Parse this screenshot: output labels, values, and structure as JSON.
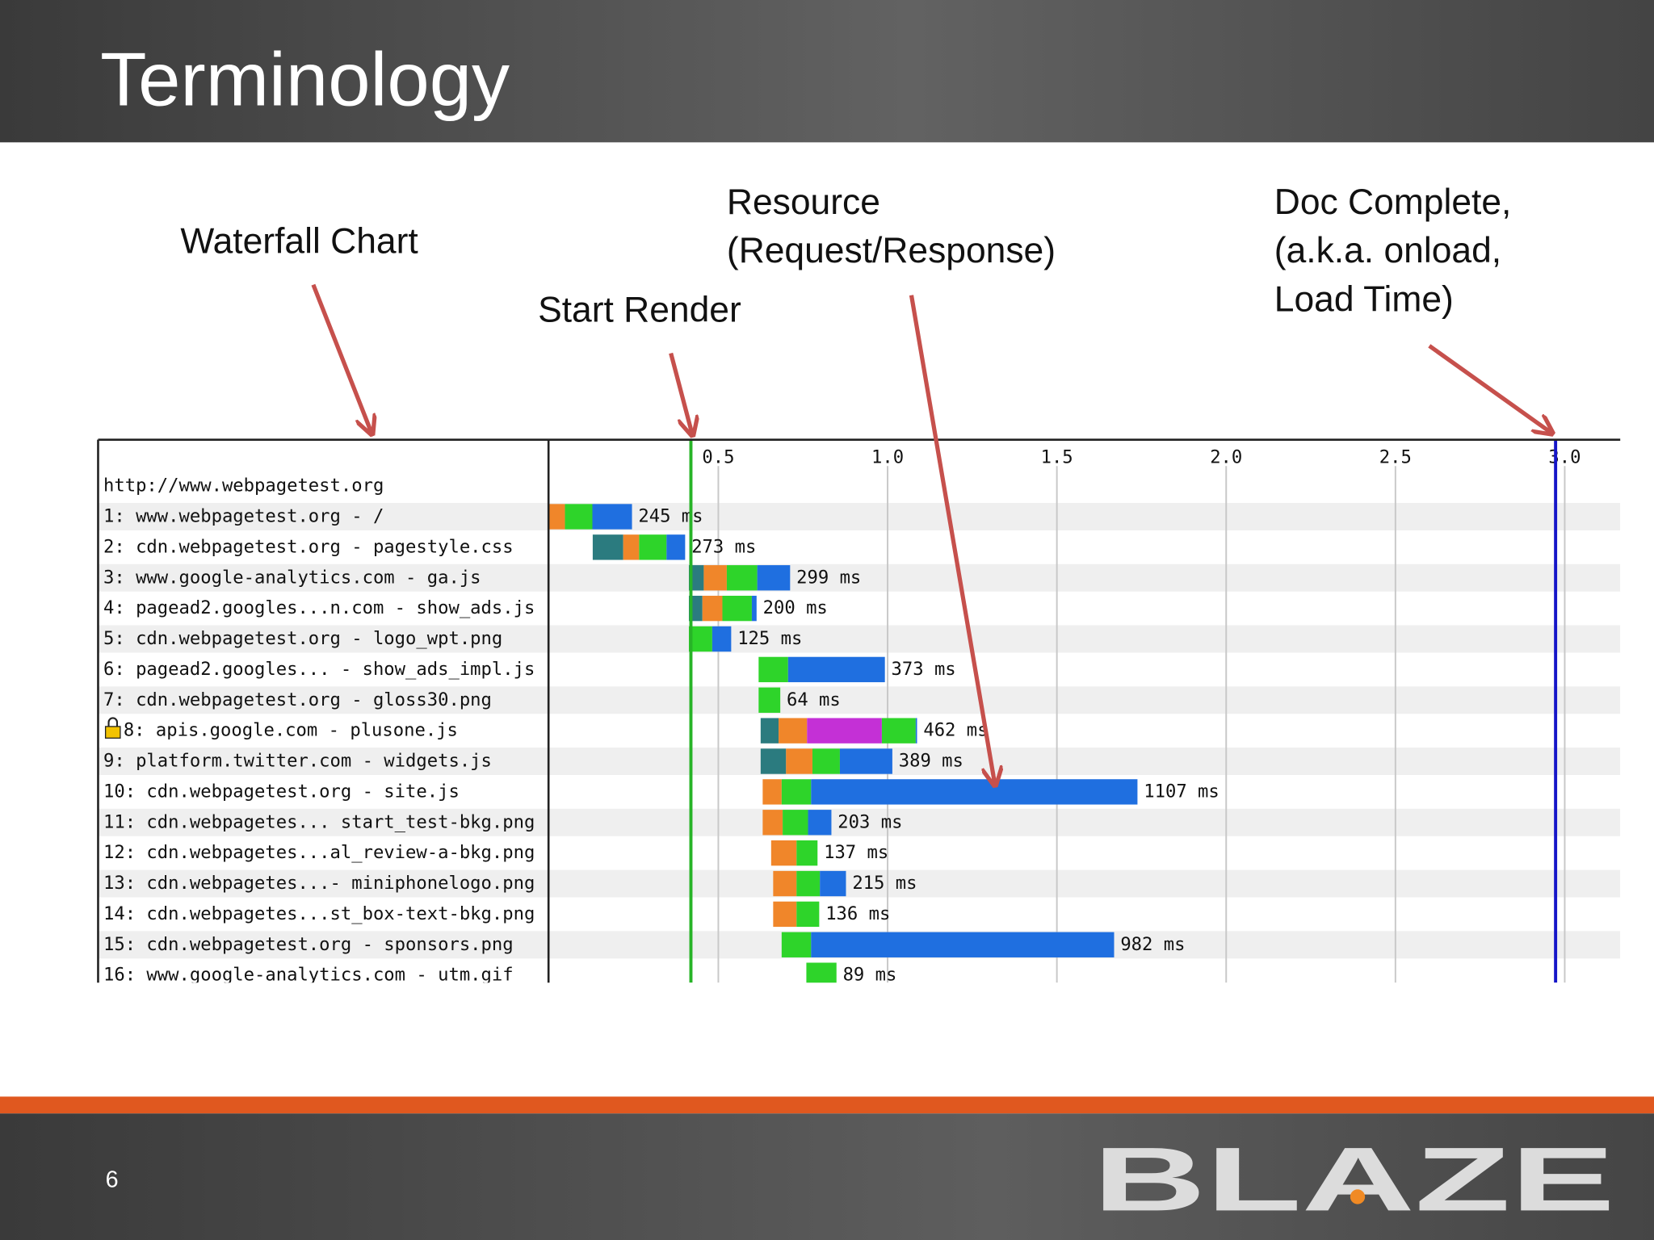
{
  "slide": {
    "title": "Terminology",
    "page_number": "6",
    "logo": "BLAZE"
  },
  "annotations": [
    {
      "lines": [
        "Waterfall Chart"
      ]
    },
    {
      "lines": [
        "Start Render"
      ]
    },
    {
      "lines": [
        "Resource",
        "(Request/Response)"
      ]
    },
    {
      "lines": [
        "Doc Complete,",
        "(a.k.a. onload,",
        "Load Time)"
      ]
    }
  ],
  "chart_data": {
    "type": "waterfall",
    "header": "http://www.webpagetest.org",
    "xlim": [
      0,
      3.164
    ],
    "xticks": [
      0.5,
      {
        "value": 1,
        "label": "1.0"
      },
      1.5,
      {
        "value": 2,
        "label": "2.0"
      },
      2.5,
      {
        "value": 3,
        "label": "3.0"
      }
    ],
    "grid": true,
    "markers": [
      {
        "value": 0.419,
        "color": "#27b427"
      },
      {
        "value": 2.973,
        "color": "#1515c8"
      }
    ],
    "rows": [
      {
        "label": "1: www.webpagetest.org - /",
        "start": 0,
        "duration": 0.245,
        "duration_label": "245 ms",
        "segments": [
          {
            "color": "#f0862a",
            "value": 0.047
          },
          {
            "color": "#2ed42a",
            "value": 0.081
          },
          {
            "color": "#1f6fe0",
            "value": 0.117
          }
        ]
      },
      {
        "label": "2: cdn.webpagetest.org - pagestyle.css",
        "start": 0.129,
        "duration": 0.273,
        "duration_label": "273 ms",
        "segments": [
          {
            "color": "#2b7b7f",
            "value": 0.09
          },
          {
            "color": "#f0862a",
            "value": 0.047
          },
          {
            "color": "#2ed42a",
            "value": 0.081
          },
          {
            "color": "#1f6fe0",
            "value": 0.055
          }
        ]
      },
      {
        "label": "3: www.google-analytics.com - ga.js",
        "start": 0.413,
        "duration": 0.299,
        "duration_label": "299 ms",
        "segments": [
          {
            "color": "#2b7b7f",
            "value": 0.044
          },
          {
            "color": "#f0862a",
            "value": 0.068
          },
          {
            "color": "#2ed42a",
            "value": 0.09
          },
          {
            "color": "#1f6fe0",
            "value": 0.097
          }
        ]
      },
      {
        "label": "4: pagead2.googles...n.com - show_ads.js",
        "start": 0.413,
        "duration": 0.2,
        "duration_label": "200 ms",
        "segments": [
          {
            "color": "#2b7b7f",
            "value": 0.04
          },
          {
            "color": "#f0862a",
            "value": 0.059
          },
          {
            "color": "#2ed42a",
            "value": 0.087
          },
          {
            "color": "#1f6fe0",
            "value": 0.014
          }
        ]
      },
      {
        "label": "5: cdn.webpagetest.org - logo_wpt.png",
        "start": 0.413,
        "duration": 0.125,
        "duration_label": "125 ms",
        "segments": [
          {
            "color": "#2ed42a",
            "value": 0.069
          },
          {
            "color": "#1f6fe0",
            "value": 0.056
          }
        ]
      },
      {
        "label": "6: pagead2.googles... - show_ads_impl.js",
        "start": 0.619,
        "duration": 0.373,
        "duration_label": "373 ms",
        "segments": [
          {
            "color": "#2ed42a",
            "value": 0.087
          },
          {
            "color": "#1f6fe0",
            "value": 0.286
          }
        ]
      },
      {
        "label": "7: cdn.webpagetest.org - gloss30.png",
        "start": 0.619,
        "duration": 0.064,
        "duration_label": "64 ms",
        "segments": [
          {
            "color": "#2ed42a",
            "value": 0.064
          }
        ]
      },
      {
        "label": "8: apis.google.com - plusone.js",
        "start": 0.625,
        "duration": 0.462,
        "duration_label": "462 ms",
        "segments": [
          {
            "color": "#2b7b7f",
            "value": 0.053
          },
          {
            "color": "#f0862a",
            "value": 0.084
          },
          {
            "color": "#c430d6",
            "value": 0.221
          },
          {
            "color": "#2ed42a",
            "value": 0.1
          },
          {
            "color": "#1f6fe0",
            "value": 0.004
          }
        ]
      },
      {
        "label": "9: platform.twitter.com - widgets.js",
        "start": 0.625,
        "duration": 0.389,
        "duration_label": "389 ms",
        "segments": [
          {
            "color": "#2b7b7f",
            "value": 0.075
          },
          {
            "color": "#f0862a",
            "value": 0.078
          },
          {
            "color": "#2ed42a",
            "value": 0.081
          },
          {
            "color": "#1f6fe0",
            "value": 0.155
          }
        ]
      },
      {
        "label": "10: cdn.webpagetest.org - site.js",
        "start": 0.631,
        "duration": 1.107,
        "duration_label": "1107 ms",
        "segments": [
          {
            "color": "#f0862a",
            "value": 0.056
          },
          {
            "color": "#2ed42a",
            "value": 0.087
          },
          {
            "color": "#1f6fe0",
            "value": 0.964
          }
        ]
      },
      {
        "label": "11: cdn.webpagetes... start_test-bkg.png",
        "start": 0.631,
        "duration": 0.203,
        "duration_label": "203 ms",
        "segments": [
          {
            "color": "#f0862a",
            "value": 0.059
          },
          {
            "color": "#2ed42a",
            "value": 0.075
          },
          {
            "color": "#1f6fe0",
            "value": 0.069
          }
        ]
      },
      {
        "label": "12: cdn.webpagetes...al_review-a-bkg.png",
        "start": 0.656,
        "duration": 0.137,
        "duration_label": "137 ms",
        "segments": [
          {
            "color": "#f0862a",
            "value": 0.075
          },
          {
            "color": "#2ed42a",
            "value": 0.062
          }
        ]
      },
      {
        "label": "13: cdn.webpagetes...- miniphonelogo.png",
        "start": 0.662,
        "duration": 0.215,
        "duration_label": "215 ms",
        "segments": [
          {
            "color": "#f0862a",
            "value": 0.069
          },
          {
            "color": "#2ed42a",
            "value": 0.069
          },
          {
            "color": "#1f6fe0",
            "value": 0.077
          }
        ]
      },
      {
        "label": "14: cdn.webpagetes...st_box-text-bkg.png",
        "start": 0.662,
        "duration": 0.136,
        "duration_label": "136 ms",
        "segments": [
          {
            "color": "#f0862a",
            "value": 0.069
          },
          {
            "color": "#2ed42a",
            "value": 0.067
          }
        ]
      },
      {
        "label": "15: cdn.webpagetest.org - sponsors.png",
        "start": 0.687,
        "duration": 0.982,
        "duration_label": "982 ms",
        "segments": [
          {
            "color": "#2ed42a",
            "value": 0.087
          },
          {
            "color": "#1f6fe0",
            "value": 0.895
          }
        ]
      },
      {
        "label": "16: www.google-analytics.com - utm.gif",
        "start": 0.76,
        "duration": 0.089,
        "duration_label": "89 ms",
        "segments": [
          {
            "color": "#2ed42a",
            "value": 0.089
          }
        ]
      }
    ]
  }
}
